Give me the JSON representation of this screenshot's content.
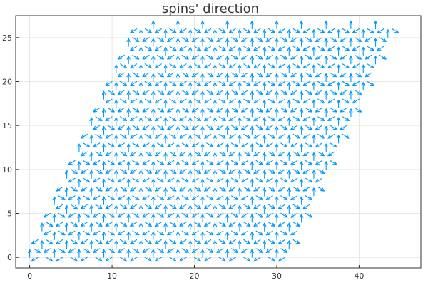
{
  "chart_data": {
    "type": "quiver",
    "title": "spins' direction",
    "xlabel": "",
    "ylabel": "",
    "xlim": [
      -1.7,
      47.5
    ],
    "ylim": [
      -1.2,
      27.5
    ],
    "xticks": [
      0,
      10,
      20,
      30,
      40
    ],
    "yticks": [
      0,
      5,
      10,
      15,
      20,
      25
    ],
    "grid": true,
    "legend": "none",
    "color": "#009AFA",
    "lattice": {
      "rows": 27,
      "cols": 32,
      "a1": [
        1.0,
        0.0
      ],
      "a2": [
        0.5,
        1.0
      ]
    },
    "spin_angles_deg": [
      90,
      210,
      330
    ],
    "arrow_length": 0.9
  }
}
